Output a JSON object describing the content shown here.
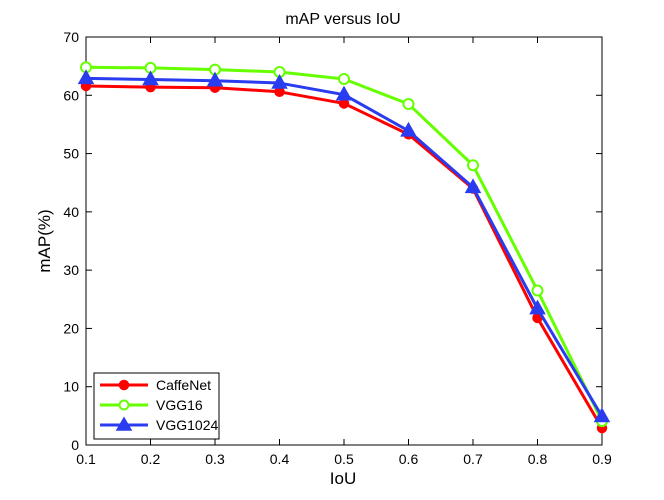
{
  "chart_data": {
    "type": "line",
    "title": "mAP versus IoU",
    "xlabel": "IoU",
    "ylabel": "mAP(%)",
    "x": [
      0.1,
      0.2,
      0.3,
      0.4,
      0.5,
      0.6,
      0.7,
      0.8,
      0.9
    ],
    "xlim": [
      0.1,
      0.9
    ],
    "ylim": [
      0,
      70
    ],
    "xticks": [
      "0.1",
      "0.2",
      "0.3",
      "0.4",
      "0.5",
      "0.6",
      "0.7",
      "0.8",
      "0.9"
    ],
    "yticks": [
      "0",
      "10",
      "20",
      "30",
      "40",
      "50",
      "60",
      "70"
    ],
    "grid": false,
    "legend_position": "bottom-left",
    "series": [
      {
        "name": "CaffeNet",
        "color": "#ff0000",
        "marker": "filled-circle",
        "values": [
          61.6,
          61.4,
          61.3,
          60.6,
          58.6,
          53.3,
          44.0,
          21.8,
          2.9
        ]
      },
      {
        "name": "VGG16",
        "color": "#66ff00",
        "marker": "hollow-circle",
        "values": [
          64.8,
          64.7,
          64.4,
          64.0,
          62.8,
          58.5,
          48.0,
          26.5,
          4.1
        ]
      },
      {
        "name": "VGG1024",
        "color": "#2a3cf0",
        "marker": "filled-triangle",
        "values": [
          62.9,
          62.7,
          62.5,
          62.1,
          60.1,
          53.9,
          44.2,
          23.4,
          4.9
        ]
      }
    ]
  }
}
